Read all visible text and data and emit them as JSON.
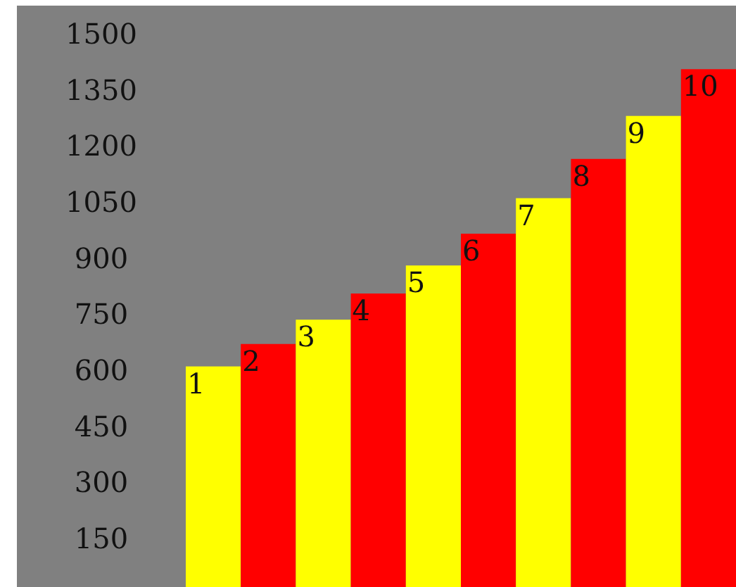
{
  "chart_data": {
    "type": "bar",
    "categories": [
      "1",
      "2",
      "3",
      "4",
      "5",
      "6",
      "7",
      "8",
      "9",
      "10"
    ],
    "values": [
      610,
      670,
      735,
      805,
      880,
      965,
      1060,
      1165,
      1280,
      1405
    ],
    "colors": [
      "#ffff00",
      "#ff0000",
      "#ffff00",
      "#ff0000",
      "#ffff00",
      "#ff0000",
      "#ffff00",
      "#ff0000",
      "#ffff00",
      "#ff0000"
    ],
    "ylim": [
      20,
      1575
    ],
    "yticks": [
      150,
      300,
      450,
      600,
      750,
      900,
      1050,
      1200,
      1350,
      1500
    ]
  }
}
